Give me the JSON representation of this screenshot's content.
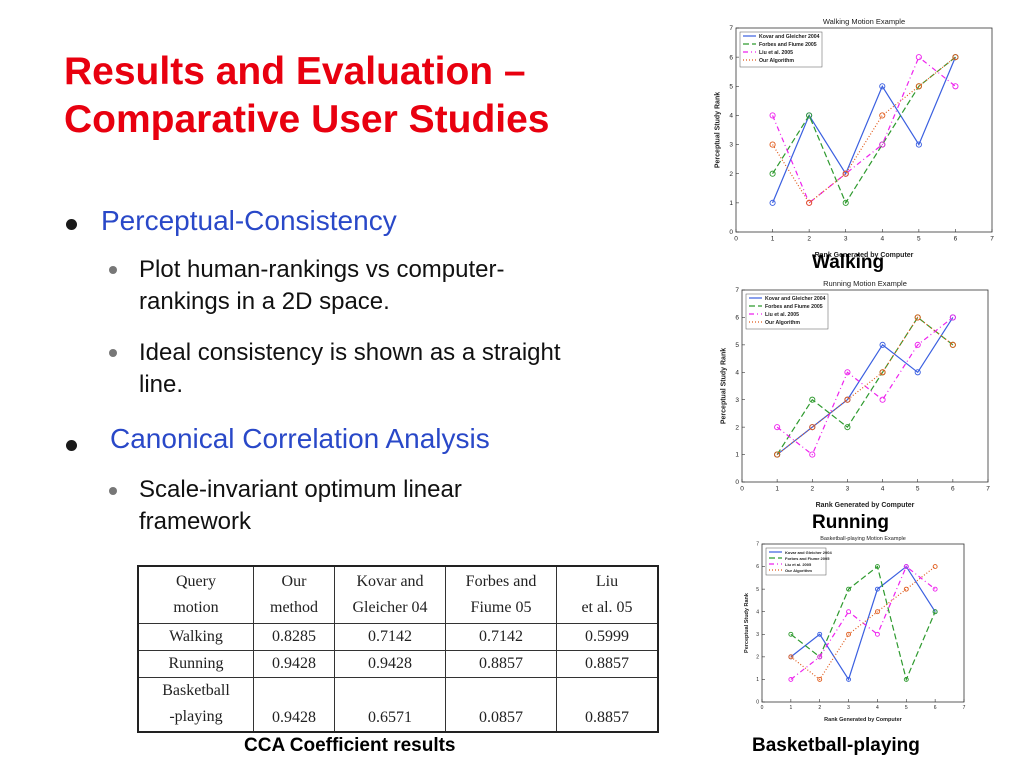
{
  "slide": {
    "title_line1": "Results and Evaluation –",
    "title_line2": "Comparative User Studies",
    "bullets": {
      "b1": "Perceptual-Consistency",
      "b1_sub1_line1": "Plot human-rankings vs computer-",
      "b1_sub1_line2": "rankings in a 2D space.",
      "b1_sub2_line1": "Ideal consistency is shown as a straight",
      "b1_sub2_line2": "line.",
      "b2": "Canonical Correlation Analysis",
      "b2_sub1_line1": "Scale-invariant optimum linear",
      "b2_sub1_line2": "framework"
    },
    "table": {
      "header": [
        [
          "Query",
          "motion"
        ],
        [
          "Our",
          "method"
        ],
        [
          "Kovar and",
          "Gleicher 04"
        ],
        [
          "Forbes and",
          "Fiume 05"
        ],
        [
          "Liu",
          "et al. 05"
        ]
      ],
      "rows": [
        {
          "label": [
            "Walking"
          ],
          "values": [
            "0.8285",
            "0.7142",
            "0.7142",
            "0.5999"
          ]
        },
        {
          "label": [
            "Running"
          ],
          "values": [
            "0.9428",
            "0.9428",
            "0.8857",
            "0.8857"
          ]
        },
        {
          "label": [
            "Basketball",
            "-playing"
          ],
          "values": [
            "0.9428",
            "0.6571",
            "0.0857",
            "0.8857"
          ]
        }
      ]
    },
    "captions": {
      "table": "CCA Coefficient results",
      "walking": "Walking",
      "running": "Running",
      "basketball": "Basketball-playing"
    },
    "colors": {
      "title": "#e8000f",
      "bullet": "#2948c8"
    }
  },
  "chart_data": [
    {
      "type": "line",
      "title": "Walking Motion Example",
      "xlabel": "Rank Generated by Computer",
      "ylabel": "Perceptual Study Rank",
      "xlim": [
        0,
        7
      ],
      "ylim": [
        0,
        7
      ],
      "x": [
        1,
        2,
        3,
        4,
        5,
        6
      ],
      "series": [
        {
          "name": "Kovar and Gleicher 2004",
          "color": "#3a5fe0",
          "values": [
            1,
            4,
            2,
            5,
            3,
            6
          ]
        },
        {
          "name": "Forbes and Fiume 2005",
          "color": "#2e9a2e",
          "values": [
            2,
            4,
            1,
            3,
            5,
            6
          ]
        },
        {
          "name": "Liu et al. 2005",
          "color": "#ee22ee",
          "values": [
            4,
            1,
            2,
            3,
            6,
            5
          ]
        },
        {
          "name": "Our Algorithm",
          "color": "#e05a1a",
          "values": [
            3,
            1,
            2,
            4,
            5,
            6
          ]
        }
      ],
      "legend": "top-left",
      "grid": false
    },
    {
      "type": "line",
      "title": "Running Motion Example",
      "xlabel": "Rank Generated by Computer",
      "ylabel": "Perceptual Study Rank",
      "xlim": [
        0,
        7
      ],
      "ylim": [
        0,
        7
      ],
      "x": [
        1,
        2,
        3,
        4,
        5,
        6
      ],
      "series": [
        {
          "name": "Kovar and Gleicher 2004",
          "color": "#3a5fe0",
          "values": [
            1,
            2,
            3,
            5,
            4,
            6
          ]
        },
        {
          "name": "Forbes and Fiume 2005",
          "color": "#2e9a2e",
          "values": [
            1,
            3,
            2,
            4,
            6,
            5
          ]
        },
        {
          "name": "Liu et al. 2005",
          "color": "#ee22ee",
          "values": [
            2,
            1,
            4,
            3,
            5,
            6
          ]
        },
        {
          "name": "Our Algorithm",
          "color": "#e05a1a",
          "values": [
            1,
            2,
            3,
            4,
            6,
            5
          ]
        }
      ],
      "legend": "top-left",
      "grid": false
    },
    {
      "type": "line",
      "title": "Basketball-playing Motion Example",
      "xlabel": "Rank Generated by Computer",
      "ylabel": "Perceptual Study Rank",
      "xlim": [
        0,
        7
      ],
      "ylim": [
        0,
        7
      ],
      "x": [
        1,
        2,
        3,
        4,
        5,
        6
      ],
      "series": [
        {
          "name": "Kovar and Gleicher 2004",
          "color": "#3a5fe0",
          "values": [
            2,
            3,
            1,
            5,
            6,
            4
          ]
        },
        {
          "name": "Forbes and Fiume 2005",
          "color": "#2e9a2e",
          "values": [
            3,
            2,
            5,
            6,
            1,
            4
          ]
        },
        {
          "name": "Liu et al. 2005",
          "color": "#ee22ee",
          "values": [
            1,
            2,
            4,
            3,
            6,
            5
          ]
        },
        {
          "name": "Our Algorithm",
          "color": "#e05a1a",
          "values": [
            2,
            1,
            3,
            4,
            5,
            6
          ]
        }
      ],
      "legend": "top-left",
      "grid": false
    }
  ]
}
